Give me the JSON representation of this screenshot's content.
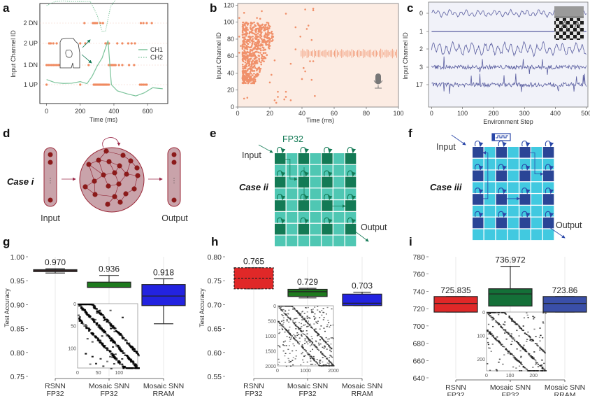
{
  "panels": {
    "a": {
      "label": "a",
      "chart_data": {
        "type": "scatter",
        "xlabel": "Time (ms)",
        "ylabel": "Input Channel ID",
        "xlim": [
          -40,
          720
        ],
        "xticks": [
          0,
          200,
          400,
          600
        ],
        "yticks": [
          "1 UP",
          "1 DN",
          "2 UP",
          "2 DN"
        ],
        "legend": [
          {
            "name": "CH1",
            "style": "solid"
          },
          {
            "name": "CH2",
            "style": "dotted"
          }
        ],
        "legend_position": "right",
        "spikes": {
          "1 UP": [
            0,
            200,
            280,
            285,
            290,
            295,
            300,
            305,
            310,
            315,
            320,
            325,
            330,
            335,
            340,
            345,
            350,
            355,
            360,
            370,
            555,
            565,
            575,
            585,
            595
          ],
          "1 DN": [
            0,
            10,
            20,
            30,
            40,
            50,
            60,
            70,
            80,
            90,
            100,
            250,
            370,
            375,
            380,
            385,
            390,
            395,
            400,
            405,
            410,
            430,
            450,
            490,
            520
          ],
          "2 UP": [
            15,
            25,
            40,
            60,
            200,
            230,
            350,
            360,
            370,
            420,
            450,
            485,
            505,
            525
          ],
          "2 DN": [
            225,
            275,
            280,
            285,
            290,
            300,
            320,
            335,
            560,
            575,
            595,
            625
          ]
        },
        "series": [
          {
            "name": "CH1",
            "x": [
              0,
              50,
              100,
              150,
              200,
              240,
              270,
              300,
              330,
              365,
              385,
              420,
              480,
              530,
              580,
              630,
              690
            ],
            "y": [
              0.25,
              0.1,
              0.06,
              0.07,
              0.15,
              0.05,
              0.4,
              0.9,
              1.3,
              2.15,
              0.0,
              -0.3,
              -0.45,
              -0.55,
              -0.4,
              -0.15,
              -0.2
            ]
          },
          {
            "name": "CH2",
            "x": [
              0,
              50,
              100,
              150,
              200,
              260,
              300,
              330,
              350,
              380,
              420,
              480,
              540,
              580,
              620,
              690
            ],
            "y": [
              3.85,
              4.05,
              4.08,
              4.05,
              4.05,
              4.05,
              3.4,
              2.6,
              2.6,
              3.8,
              4.25,
              4.45,
              4.65,
              4.45,
              4.15,
              4.15
            ]
          }
        ]
      }
    },
    "b": {
      "label": "b",
      "chart_data": {
        "type": "scatter",
        "xlabel": "Time (ms)",
        "ylabel": "Input Channel ID",
        "xlim": [
          0,
          100
        ],
        "ylim": [
          0,
          122
        ],
        "xticks": [
          0,
          20,
          40,
          60,
          80,
          100
        ],
        "yticks": [
          0,
          20,
          40,
          60,
          80,
          100,
          120
        ],
        "note": "dense spike cluster at 3–23 ms across channels ~28–100; sparse spikes afterwards; waveform glyph around channel 63 from 39–100 ms",
        "sparse_points": [
          [
            1,
            105
          ],
          [
            4,
            111
          ],
          [
            15,
            113
          ],
          [
            12,
            105
          ],
          [
            14,
            104
          ],
          [
            30,
            110
          ],
          [
            42,
            115
          ],
          [
            47,
            116
          ],
          [
            47,
            114
          ],
          [
            36,
            94
          ],
          [
            44,
            96
          ],
          [
            43,
            92
          ],
          [
            39,
            83
          ],
          [
            46,
            79
          ],
          [
            36,
            68
          ],
          [
            33,
            51
          ],
          [
            45,
            54
          ],
          [
            47,
            54
          ],
          [
            41,
            46
          ],
          [
            42,
            42
          ],
          [
            40,
            33
          ],
          [
            46,
            32
          ],
          [
            48,
            13
          ],
          [
            25,
            18
          ],
          [
            25,
            12
          ],
          [
            23,
            8
          ],
          [
            24,
            5
          ],
          [
            29,
            9
          ],
          [
            30,
            12
          ],
          [
            30,
            18
          ],
          [
            33,
            8
          ],
          [
            6,
            11
          ],
          [
            4,
            10
          ],
          [
            21,
            38
          ],
          [
            20,
            29
          ],
          [
            1,
            64
          ],
          [
            1,
            83
          ],
          [
            2,
            72
          ],
          [
            23,
            55
          ]
        ]
      }
    },
    "c": {
      "label": "c",
      "chart_data": {
        "type": "line",
        "xlabel": "Environment Step",
        "ylabel": "Input Channel ID",
        "xlim": [
          -10,
          505
        ],
        "xticks": [
          0,
          100,
          200,
          300,
          400,
          500
        ],
        "yticks": [
          "0",
          "1",
          "2",
          "3",
          "17"
        ],
        "series_names": [
          "0",
          "1",
          "2",
          "3",
          "17"
        ],
        "series_style": [
          "smooth-oscillation",
          "flat",
          "large-oscillation",
          "noisy",
          "noisy"
        ]
      }
    },
    "d": {
      "label": "d",
      "case_label": "Case i",
      "input_label": "Input",
      "output_label": "Output",
      "ellipsis": "⋮"
    },
    "e": {
      "label": "e",
      "case_label": "Case ii",
      "precision_label": "FP32",
      "input_label": "Input",
      "output_label": "Output"
    },
    "f": {
      "label": "f",
      "case_label": "Case iii",
      "input_label": "Input",
      "output_label": "Output",
      "device_icon": "rram-pulse-icon"
    },
    "g": {
      "label": "g",
      "chart_data": {
        "type": "box",
        "ylabel": "Test Accuracy",
        "ylim": [
          0.75,
          1.0
        ],
        "yticks": [
          "1.00",
          "0.95",
          "0.90",
          "0.85",
          "0.80",
          "0.75"
        ],
        "ytick_values": [
          1.0,
          0.95,
          0.9,
          0.85,
          0.8,
          0.75
        ],
        "categories": [
          [
            "RSNN",
            "FP32"
          ],
          [
            "Mosaic SNN",
            "FP32"
          ],
          [
            "Mosaic SNN",
            "RRAM"
          ]
        ],
        "boxes": [
          {
            "label": "0.970",
            "whisker_low": 0.966,
            "q1": 0.969,
            "median": 0.971,
            "q3": 0.973,
            "whisker_high": 0.975,
            "color": "#a52a2a",
            "dashed": false
          },
          {
            "label": "0.936",
            "whisker_low": 0.936,
            "q1": 0.936,
            "median": 0.936,
            "q3": 0.947,
            "whisker_high": 0.961,
            "color": "#1e7a1e",
            "dashed": false
          },
          {
            "label": "0.918",
            "whisker_low": 0.86,
            "q1": 0.898,
            "median": 0.918,
            "q3": 0.942,
            "whisker_high": 0.954,
            "color": "#2323e0",
            "dashed": false
          }
        ],
        "inset": {
          "type": "heatmap",
          "ticks": [
            "0",
            "50",
            "100"
          ],
          "description": "binary connectivity matrix with diagonal bands"
        }
      }
    },
    "h": {
      "label": "h",
      "chart_data": {
        "type": "box",
        "ylabel": "Test Accuracy",
        "ylim": [
          0.55,
          0.8
        ],
        "yticks": [
          "0.80",
          "0.75",
          "0.70",
          "0.65",
          "0.60",
          "0.55"
        ],
        "ytick_values": [
          0.8,
          0.75,
          0.7,
          0.65,
          0.6,
          0.55
        ],
        "categories": [
          [
            "RSNN",
            "FP32"
          ],
          [
            "Mosaic SNN",
            "FP32"
          ],
          [
            "Mosaic SNN",
            "RRAM"
          ]
        ],
        "boxes": [
          {
            "label": "0.765",
            "whisker_low": 0.733,
            "q1": 0.733,
            "median": 0.755,
            "q3": 0.777,
            "whisker_high": 0.777,
            "color": "#e02828",
            "dashed": true
          },
          {
            "label": "0.729",
            "whisker_low": 0.714,
            "q1": 0.717,
            "median": 0.727,
            "q3": 0.732,
            "whisker_high": 0.734,
            "color": "#1e7a1e",
            "dashed": false
          },
          {
            "label": "0.703",
            "whisker_low": 0.698,
            "q1": 0.698,
            "median": 0.703,
            "q3": 0.722,
            "whisker_high": 0.726,
            "color": "#2323e0",
            "dashed": false
          }
        ],
        "inset": {
          "type": "heatmap",
          "ticks": [
            "0",
            "500",
            "1000",
            "1500",
            "2000"
          ],
          "xticks": [
            "0",
            "1000",
            "2000"
          ],
          "description": "grayscale connectivity matrix with strong diagonal"
        }
      }
    },
    "i": {
      "label": "i",
      "chart_data": {
        "type": "box",
        "ylabel": "",
        "ylim": [
          640,
          780
        ],
        "yticks": [
          "780",
          "760",
          "740",
          "720",
          "700",
          "680",
          "660",
          "640"
        ],
        "ytick_values": [
          780,
          760,
          740,
          720,
          700,
          680,
          660,
          640
        ],
        "categories": [
          [
            "RSNN",
            "FP32"
          ],
          [
            "Mosaic SNN",
            "FP32"
          ],
          [
            "Mosaic SNN",
            "RRAM"
          ]
        ],
        "boxes": [
          {
            "label": "725.835",
            "whisker_low": 716,
            "q1": 716,
            "median": 726,
            "q3": 734,
            "whisker_high": 734,
            "color": "#e02828",
            "dashed": false
          },
          {
            "label": "736.972",
            "whisker_low": 723,
            "q1": 723,
            "median": 737,
            "q3": 743,
            "whisker_high": 769,
            "color": "#147038",
            "dashed": false
          },
          {
            "label": "723.86",
            "whisker_low": 716,
            "q1": 716,
            "median": 726,
            "q3": 734,
            "whisker_high": 734,
            "color": "#3a4fa8",
            "dashed": false
          }
        ],
        "inset": {
          "type": "heatmap",
          "ticks": [
            "0",
            "100",
            "200"
          ],
          "description": "block-diagonal connectivity matrix"
        }
      }
    }
  }
}
